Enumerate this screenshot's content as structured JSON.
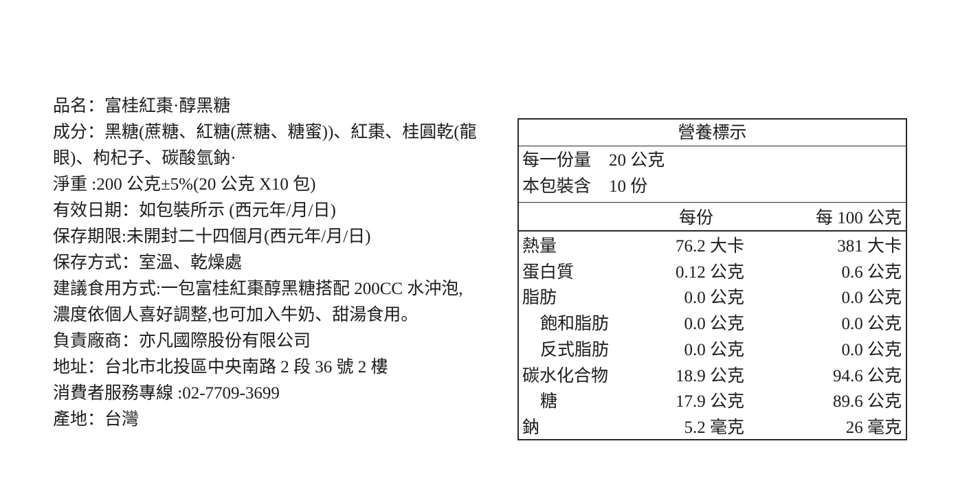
{
  "page": {
    "background": "#ffffff",
    "text_color": "#1c1c1c",
    "border_color": "#2a2a2a"
  },
  "product_info": {
    "lines": [
      "品名：富桂紅棗·醇黑糖",
      "成分：黑糖(蔗糖、紅糖(蔗糖、糖蜜))、紅棗、桂圓乾(龍",
      "眼)、枸杞子、碳酸氫鈉·",
      "淨重 :200 公克±5%(20 公克 X10 包)",
      "有效日期：如包裝所示 (西元年/月/日)",
      "保存期限:未開封二十四個月(西元年/月/日)",
      "保存方式：室溫、乾燥處",
      "建議食用方式:一包富桂紅棗醇黑糖搭配 200CC 水沖泡,",
      "濃度依個人喜好調整,也可加入牛奶、甜湯食用。",
      "負責廠商：亦凡國際股份有限公司",
      "地址：台北市北投區中央南路 2 段 36 號 2 樓",
      "消費者服務專線 :02-7709-3699",
      "產地：台灣"
    ]
  },
  "nutrition_table": {
    "title": "營養標示",
    "serving_rows": [
      {
        "label": "每一份量",
        "value": "20 公克"
      },
      {
        "label": "本包裝含",
        "value": "10 份"
      }
    ],
    "column_headers": {
      "per_serving": "每份",
      "per_100g": "每 100 公克"
    },
    "rows": [
      {
        "name": "熱量",
        "indent": false,
        "per_serving": "76.2 大卡",
        "per_100g": "381 大卡"
      },
      {
        "name": "蛋白質",
        "indent": false,
        "per_serving": "0.12 公克",
        "per_100g": "0.6 公克"
      },
      {
        "name": "脂肪",
        "indent": false,
        "per_serving": "0.0 公克",
        "per_100g": "0.0 公克"
      },
      {
        "name": "飽和脂肪",
        "indent": true,
        "per_serving": "0.0 公克",
        "per_100g": "0.0 公克"
      },
      {
        "name": "反式脂肪",
        "indent": true,
        "per_serving": "0.0 公克",
        "per_100g": "0.0 公克"
      },
      {
        "name": "碳水化合物",
        "indent": false,
        "per_serving": "18.9 公克",
        "per_100g": "94.6 公克"
      },
      {
        "name": "糖",
        "indent": true,
        "per_serving": "17.9 公克",
        "per_100g": "89.6 公克"
      },
      {
        "name": "鈉",
        "indent": false,
        "per_serving": "5.2 毫克",
        "per_100g": "26 毫克"
      }
    ]
  }
}
